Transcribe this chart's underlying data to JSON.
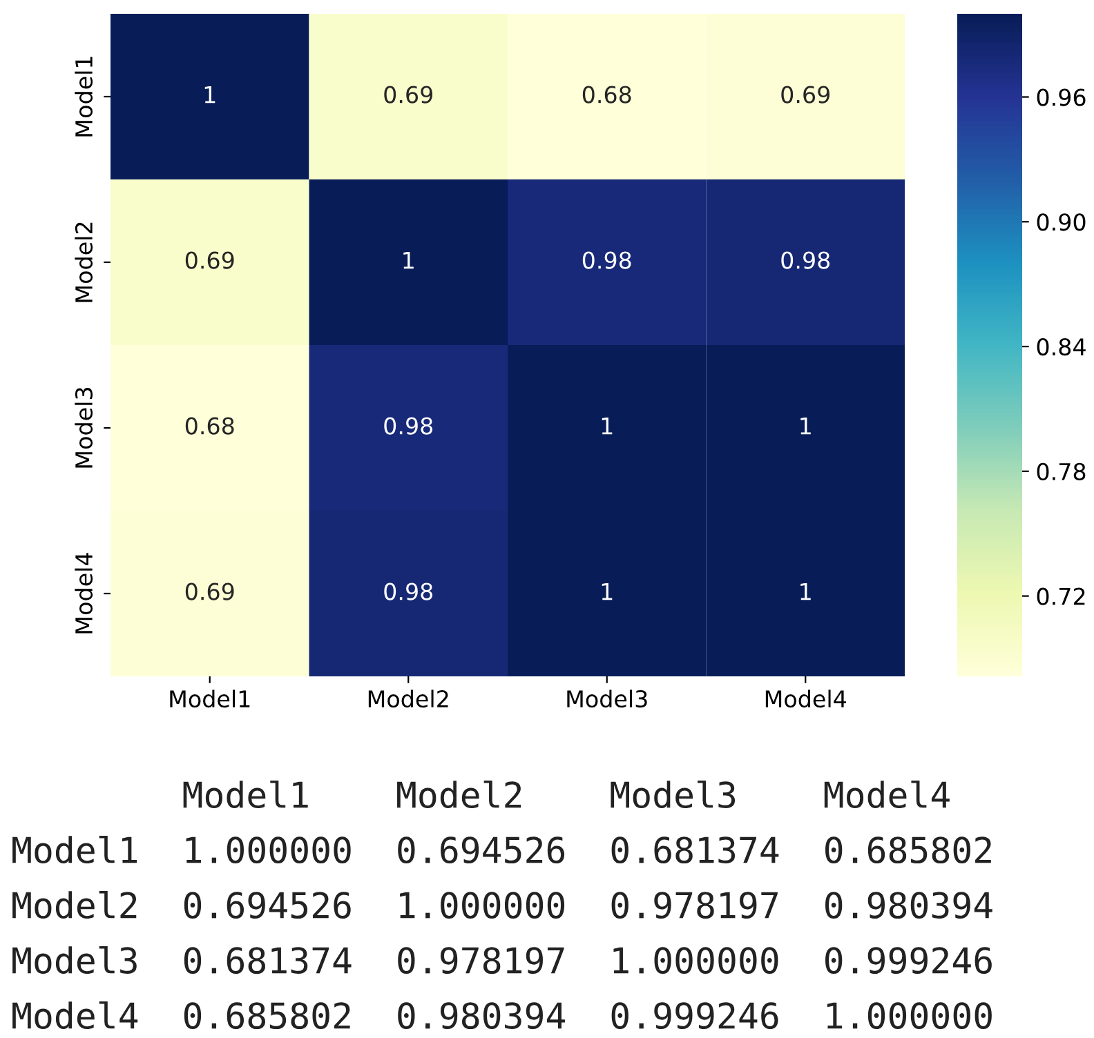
{
  "chart_data": {
    "type": "heatmap",
    "categories": [
      "Model1",
      "Model2",
      "Model3",
      "Model4"
    ],
    "y_categories": [
      "Model1",
      "Model2",
      "Model3",
      "Model4"
    ],
    "cells": [
      [
        1.0,
        0.694526,
        0.681374,
        0.685802
      ],
      [
        0.694526,
        1.0,
        0.978197,
        0.980394
      ],
      [
        0.681374,
        0.978197,
        1.0,
        0.999246
      ],
      [
        0.685802,
        0.980394,
        0.999246,
        1.0
      ]
    ],
    "cell_labels": [
      [
        "1",
        "0.69",
        "0.68",
        "0.69"
      ],
      [
        "0.69",
        "1",
        "0.98",
        "0.98"
      ],
      [
        "0.68",
        "0.98",
        "1",
        "1"
      ],
      [
        "0.69",
        "0.98",
        "1",
        "1"
      ]
    ],
    "clim": [
      0.681374,
      1.0
    ],
    "cticks": [
      0.72,
      0.78,
      0.84,
      {
        "value": 0.9,
        "label": "0.90"
      },
      0.96
    ],
    "annotations": [
      "        Model1    Model2    Model3    Model4",
      "Model1  1.000000  0.694526  0.681374  0.685802",
      "Model2  0.694526  1.000000  0.978197  0.980394",
      "Model3  0.681374  0.978197  1.000000  0.999246",
      "Model4  0.685802  0.980394  0.999246  1.000000"
    ]
  }
}
